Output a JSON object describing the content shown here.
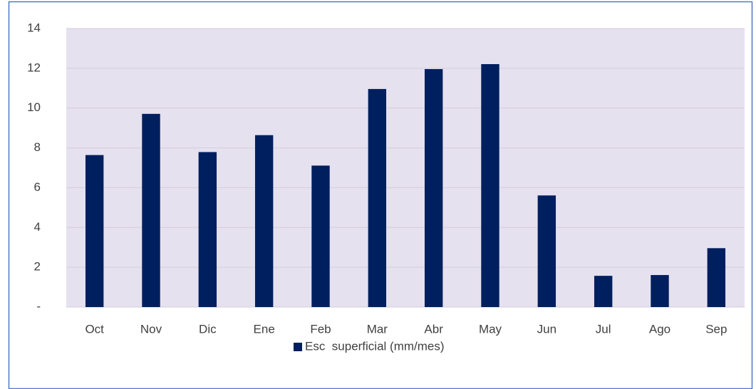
{
  "chart_data": {
    "type": "bar",
    "categories": [
      "Oct",
      "Nov",
      "Dic",
      "Ene",
      "Feb",
      "Mar",
      "Abr",
      "May",
      "Jun",
      "Jul",
      "Ago",
      "Sep"
    ],
    "series": [
      {
        "name": "Esc  superficial (mm/mes)",
        "color": "#001f5f",
        "values": [
          7.64,
          9.71,
          7.79,
          8.64,
          7.11,
          10.96,
          11.96,
          12.21,
          5.61,
          1.57,
          1.61,
          2.96
        ]
      }
    ],
    "ylim": [
      0,
      14
    ],
    "yticks": [
      {
        "value": 0,
        "label": "-"
      },
      2,
      4,
      6,
      8,
      10,
      12,
      14
    ],
    "grid": true,
    "legend": "bottom"
  }
}
